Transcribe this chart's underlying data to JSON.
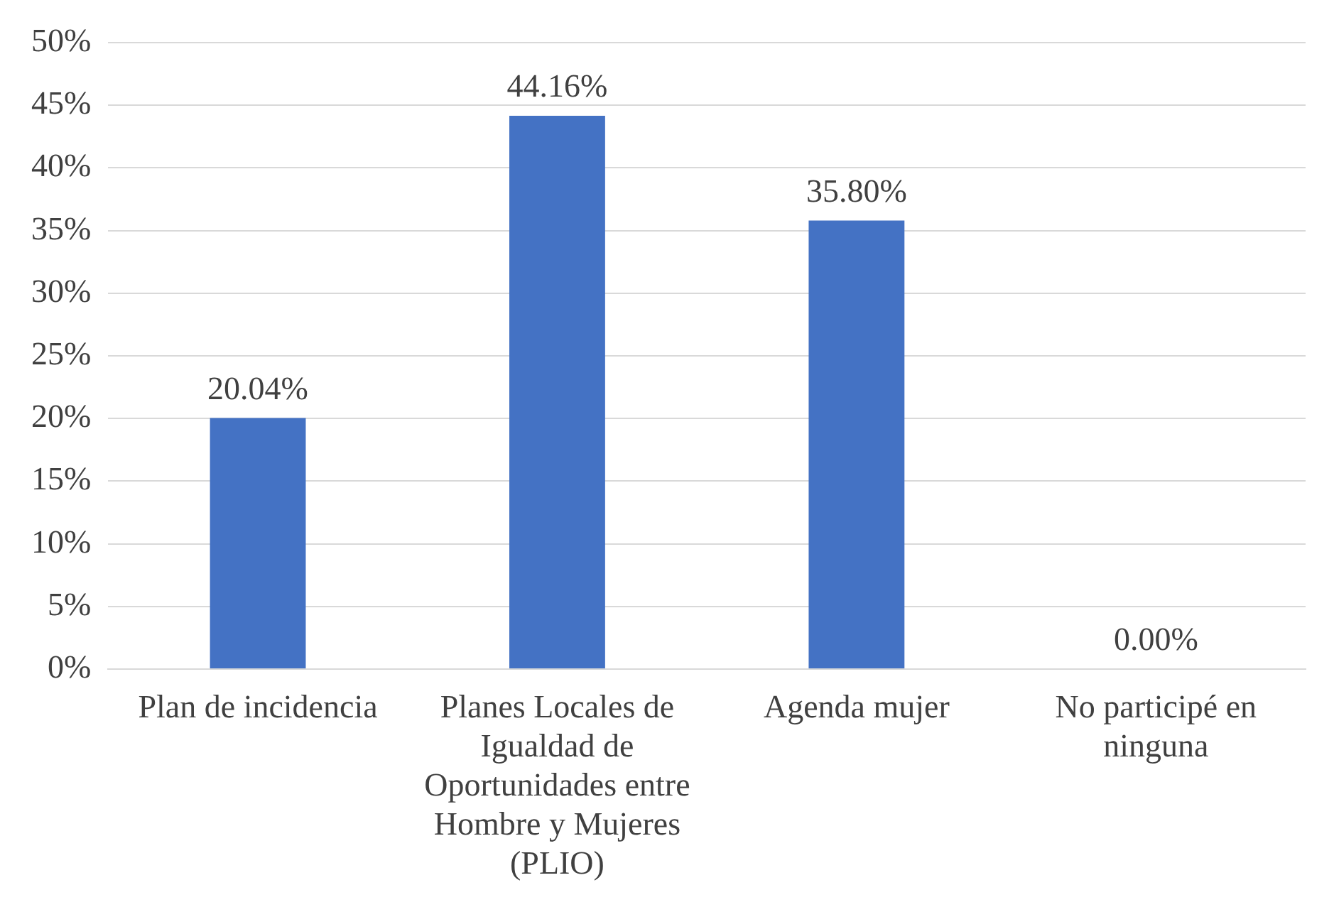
{
  "chart_data": {
    "type": "bar",
    "categories": [
      "Plan de incidencia",
      "Planes Locales de Igualdad de Oportunidades entre Hombre y Mujeres (PLIO)",
      "Agenda mujer",
      "No participé en ninguna"
    ],
    "values": [
      20.04,
      44.16,
      35.8,
      0.0
    ],
    "value_labels": [
      "20.04%",
      "44.16%",
      "35.80%",
      "0.00%"
    ],
    "color": "#4472c4",
    "ylim": [
      0,
      50
    ],
    "yticks": [
      {
        "value": 0,
        "label": "0%"
      },
      {
        "value": 5,
        "label": "5%"
      },
      {
        "value": 10,
        "label": "10%"
      },
      {
        "value": 15,
        "label": "15%"
      },
      {
        "value": 20,
        "label": "20%"
      },
      {
        "value": 25,
        "label": "25%"
      },
      {
        "value": 30,
        "label": "30%"
      },
      {
        "value": 35,
        "label": "35%"
      },
      {
        "value": 40,
        "label": "40%"
      },
      {
        "value": 45,
        "label": "45%"
      },
      {
        "value": 50,
        "label": "50%"
      }
    ],
    "grid": "y",
    "legend": false
  }
}
